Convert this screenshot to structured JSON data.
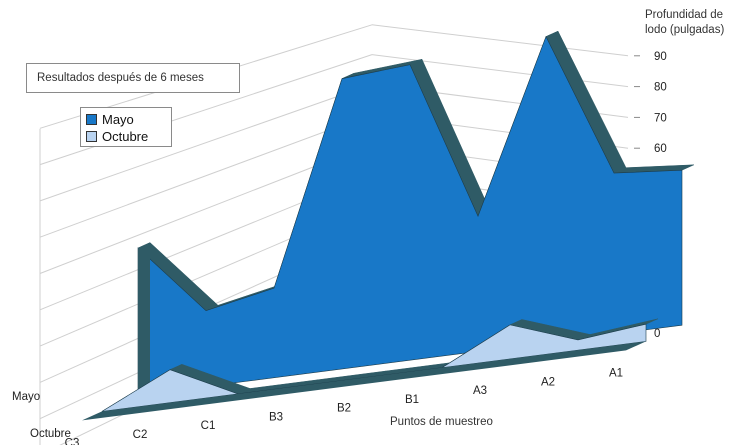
{
  "annotation": "Resultados después de 6 meses",
  "chart_data": {
    "type": "area",
    "title": "",
    "ylabel": "Profundidad de\nlodo (pulgadas)",
    "xlabel": "Puntos de muestreo",
    "categories": [
      "C3",
      "C2",
      "C1",
      "B3",
      "B2",
      "B1",
      "A3",
      "A2",
      "A1"
    ],
    "yticks": [
      0,
      10,
      20,
      30,
      40,
      50,
      60,
      70,
      80,
      90
    ],
    "ylim": [
      0,
      90
    ],
    "grid": true,
    "legend_position": "top-left",
    "series": [
      {
        "name": "Mayo",
        "values": [
          45,
          23,
          27,
          87,
          88,
          40,
          90,
          47,
          45
        ],
        "color": "#1878c8"
      },
      {
        "name": "Octubre",
        "values": [
          0,
          10,
          0,
          0,
          0,
          0,
          10,
          3,
          5
        ],
        "color": "#b9d3f0"
      }
    ],
    "depth_labels": [
      "Mayo",
      "Octubre"
    ]
  }
}
